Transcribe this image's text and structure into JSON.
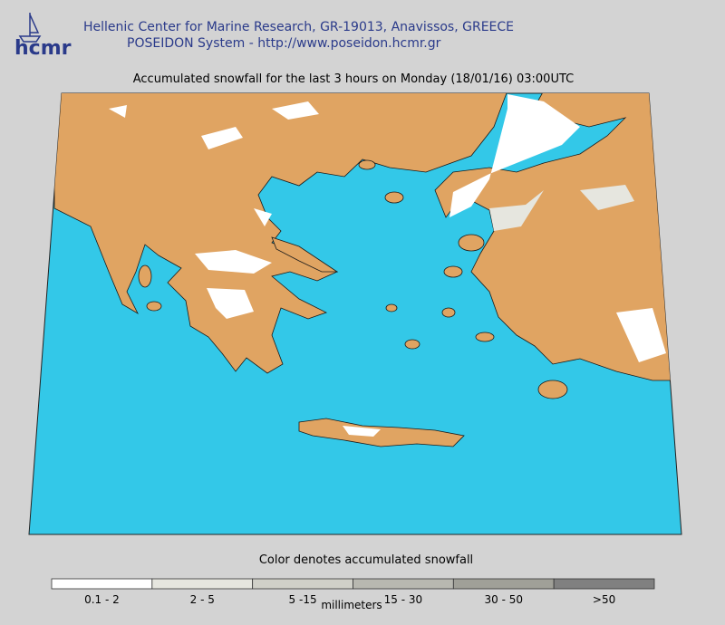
{
  "header": {
    "logo": "hcmr",
    "line1": "Hellenic Center for Marine Research, GR-19013, Anavissos, GREECE",
    "line2": "POSEIDON System - http://www.poseidon.hcmr.gr"
  },
  "map": {
    "title": "Accumulated snowfall for the last 3 hours on Monday (18/01/16) 03:00UTC"
  },
  "legend": {
    "caption": "Color denotes accumulated snowfall",
    "unit": "millimeters",
    "classes": [
      {
        "label": "0.1 - 2",
        "color": "#ffffff"
      },
      {
        "label": "2 - 5",
        "color": "#e6e6df"
      },
      {
        "label": "5 -15",
        "color": "#d0d0c8"
      },
      {
        "label": "15 - 30",
        "color": "#b8b8b0"
      },
      {
        "label": "30 - 50",
        "color": "#a0a098"
      },
      {
        "label": ">50",
        "color": "#808080"
      }
    ]
  }
}
